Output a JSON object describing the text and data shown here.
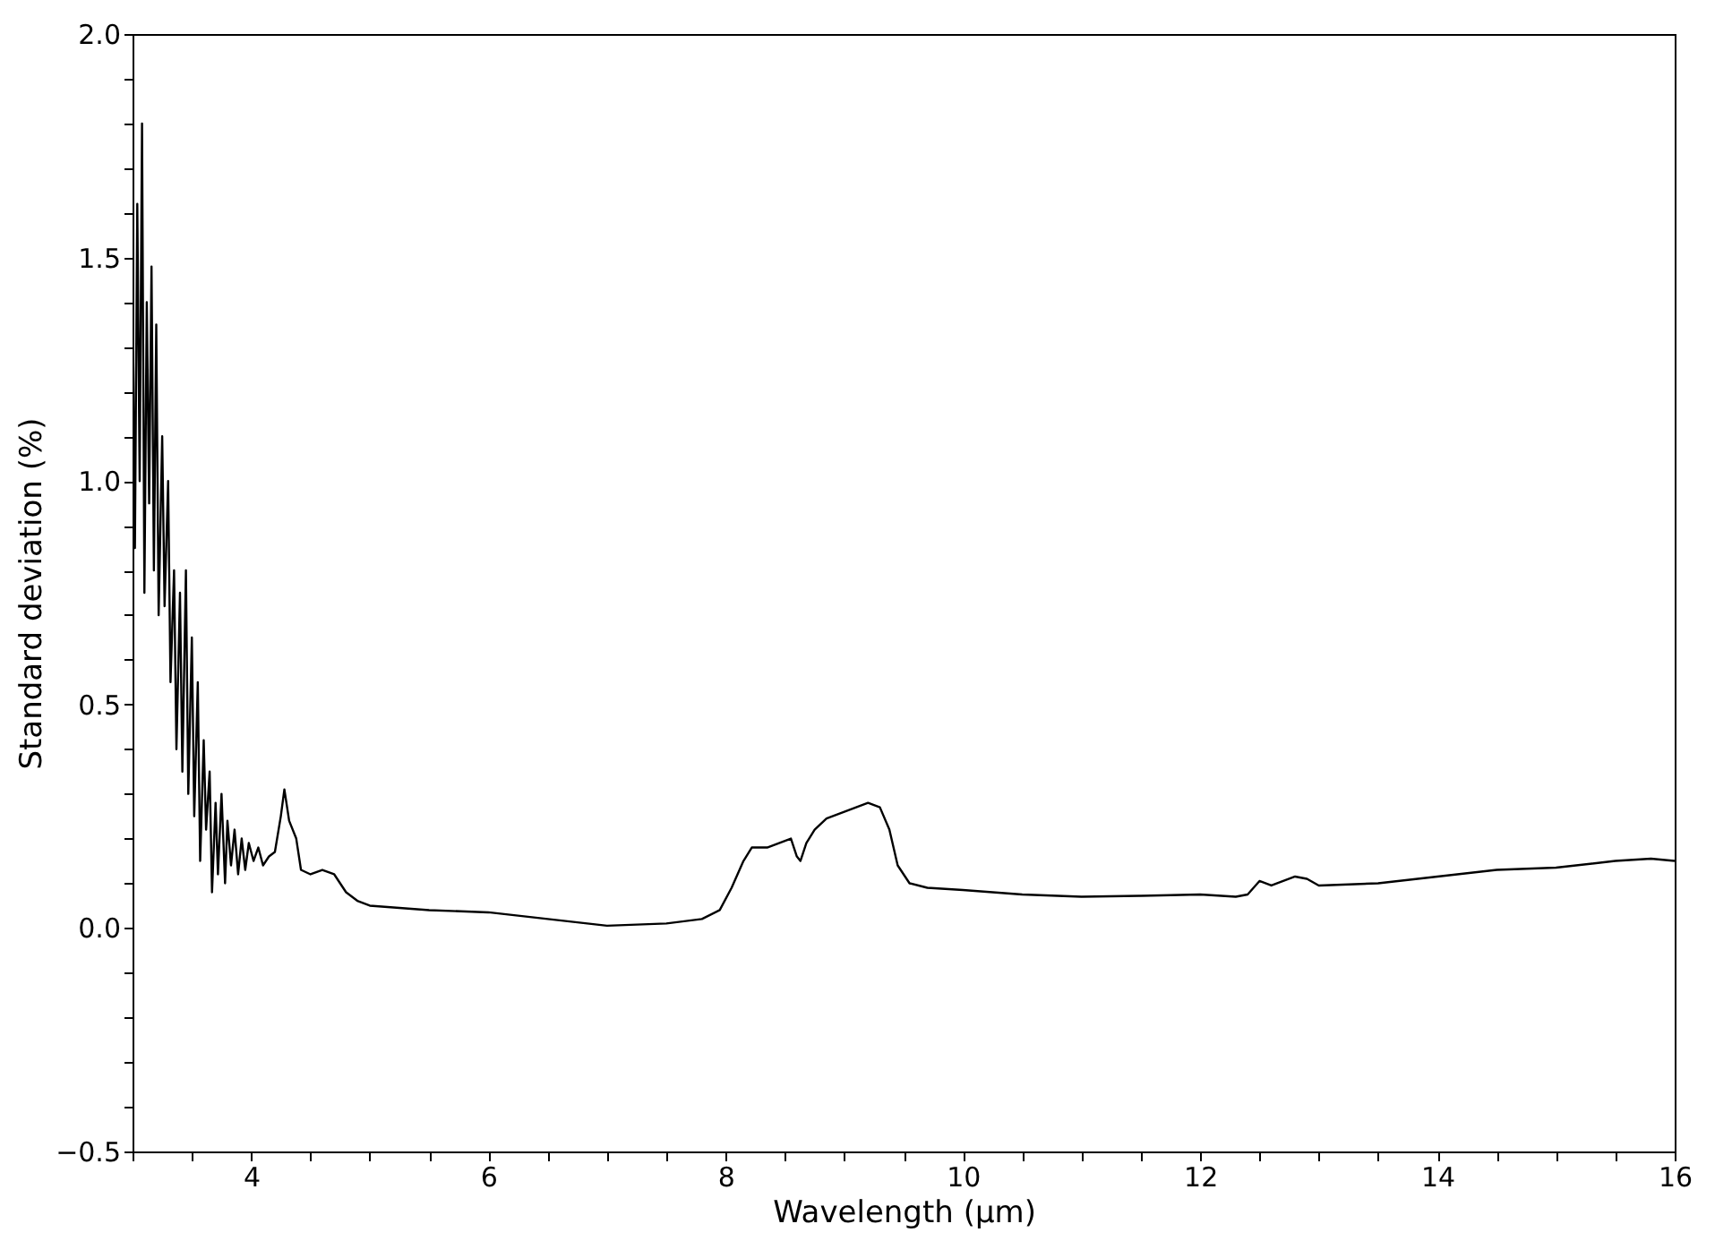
{
  "chart_data": {
    "type": "line",
    "xlabel": "Wavelength (μm)",
    "ylabel": "Standard deviation (%)",
    "x": [
      3.0,
      3.02,
      3.04,
      3.06,
      3.08,
      3.1,
      3.12,
      3.14,
      3.16,
      3.18,
      3.2,
      3.22,
      3.25,
      3.27,
      3.3,
      3.32,
      3.35,
      3.37,
      3.4,
      3.42,
      3.45,
      3.47,
      3.5,
      3.52,
      3.55,
      3.57,
      3.6,
      3.62,
      3.65,
      3.67,
      3.7,
      3.72,
      3.75,
      3.78,
      3.8,
      3.83,
      3.86,
      3.89,
      3.92,
      3.95,
      3.98,
      4.02,
      4.06,
      4.1,
      4.15,
      4.2,
      4.25,
      4.28,
      4.32,
      4.38,
      4.42,
      4.5,
      4.6,
      4.7,
      4.8,
      4.9,
      5.0,
      5.5,
      6.0,
      6.5,
      7.0,
      7.5,
      7.8,
      7.95,
      8.05,
      8.15,
      8.22,
      8.35,
      8.5,
      8.55,
      8.6,
      8.63,
      8.68,
      8.75,
      8.85,
      9.0,
      9.1,
      9.2,
      9.3,
      9.38,
      9.45,
      9.55,
      9.7,
      10.0,
      10.5,
      11.0,
      11.5,
      12.0,
      12.3,
      12.4,
      12.5,
      12.6,
      12.8,
      12.9,
      13.0,
      13.5,
      14.0,
      14.5,
      15.0,
      15.5,
      15.8,
      16.0
    ],
    "series": [
      {
        "color": "#000000",
        "values": [
          1.45,
          0.85,
          1.62,
          1.0,
          1.8,
          0.75,
          1.4,
          0.95,
          1.48,
          0.8,
          1.35,
          0.7,
          1.1,
          0.72,
          1.0,
          0.55,
          0.8,
          0.4,
          0.75,
          0.35,
          0.8,
          0.3,
          0.65,
          0.25,
          0.55,
          0.15,
          0.42,
          0.22,
          0.35,
          0.08,
          0.28,
          0.12,
          0.3,
          0.1,
          0.24,
          0.14,
          0.22,
          0.12,
          0.2,
          0.13,
          0.19,
          0.15,
          0.18,
          0.14,
          0.16,
          0.17,
          0.25,
          0.31,
          0.24,
          0.2,
          0.13,
          0.12,
          0.13,
          0.12,
          0.08,
          0.06,
          0.05,
          0.04,
          0.035,
          0.02,
          0.005,
          0.01,
          0.02,
          0.04,
          0.09,
          0.15,
          0.18,
          0.18,
          0.195,
          0.2,
          0.16,
          0.15,
          0.19,
          0.22,
          0.245,
          0.26,
          0.27,
          0.28,
          0.27,
          0.22,
          0.14,
          0.1,
          0.09,
          0.085,
          0.075,
          0.07,
          0.072,
          0.075,
          0.07,
          0.075,
          0.105,
          0.095,
          0.115,
          0.11,
          0.095,
          0.1,
          0.115,
          0.13,
          0.135,
          0.15,
          0.155,
          0.15
        ]
      }
    ],
    "xlim": [
      3,
      16
    ],
    "xticks": [
      {
        "value": 3,
        "label": null
      },
      {
        "value": 3.5,
        "label": null
      },
      4,
      {
        "value": 4.5,
        "label": null
      },
      {
        "value": 5,
        "label": null
      },
      {
        "value": 5.5,
        "label": null
      },
      6,
      {
        "value": 6.5,
        "label": null
      },
      {
        "value": 7,
        "label": null
      },
      {
        "value": 7.5,
        "label": null
      },
      8,
      {
        "value": 8.5,
        "label": null
      },
      {
        "value": 9,
        "label": null
      },
      {
        "value": 9.5,
        "label": null
      },
      10,
      {
        "value": 10.5,
        "label": null
      },
      {
        "value": 11,
        "label": null
      },
      {
        "value": 11.5,
        "label": null
      },
      12,
      {
        "value": 12.5,
        "label": null
      },
      {
        "value": 13,
        "label": null
      },
      {
        "value": 13.5,
        "label": null
      },
      14,
      {
        "value": 14.5,
        "label": null
      },
      {
        "value": 15,
        "label": null
      },
      {
        "value": 15.5,
        "label": null
      },
      16
    ],
    "ylim": [
      -0.5,
      2.0
    ],
    "yticks": [
      {
        "value": -0.5,
        "label": "−0.5"
      },
      {
        "value": -0.4,
        "label": null
      },
      {
        "value": -0.3,
        "label": null
      },
      {
        "value": -0.2,
        "label": null
      },
      {
        "value": -0.1,
        "label": null
      },
      {
        "value": 0,
        "label": "0.0"
      },
      {
        "value": 0.1,
        "label": null
      },
      {
        "value": 0.2,
        "label": null
      },
      {
        "value": 0.3,
        "label": null
      },
      {
        "value": 0.4,
        "label": null
      },
      0.5,
      {
        "value": 0.6,
        "label": null
      },
      {
        "value": 0.7,
        "label": null
      },
      {
        "value": 0.8,
        "label": null
      },
      {
        "value": 0.9,
        "label": null
      },
      {
        "value": 1,
        "label": "1.0"
      },
      {
        "value": 1.1,
        "label": null
      },
      {
        "value": 1.2,
        "label": null
      },
      {
        "value": 1.3,
        "label": null
      },
      {
        "value": 1.4,
        "label": null
      },
      1.5,
      {
        "value": 1.6,
        "label": null
      },
      {
        "value": 1.7,
        "label": null
      },
      {
        "value": 1.8,
        "label": null
      },
      {
        "value": 1.9,
        "label": null
      },
      {
        "value": 2,
        "label": "2.0"
      }
    ],
    "grid": false,
    "marker": "none",
    "line_style": "solid"
  }
}
